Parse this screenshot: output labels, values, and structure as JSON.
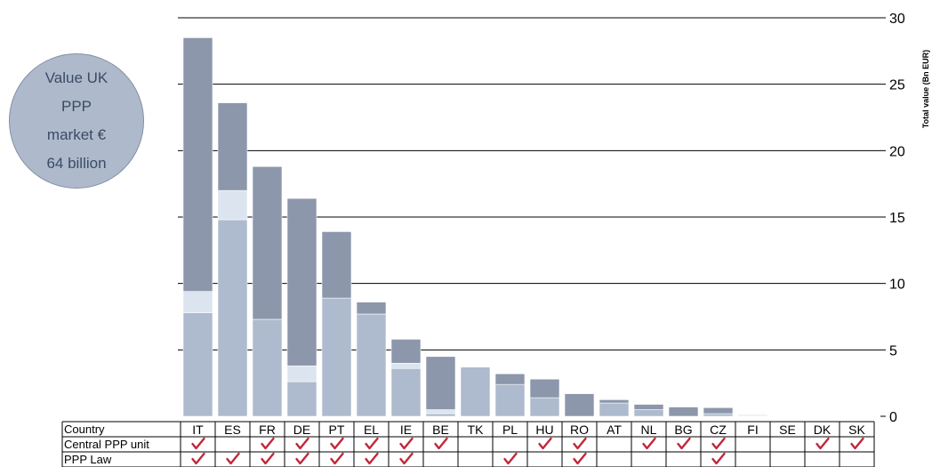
{
  "bubble": {
    "line1": "Value UK",
    "line2": "PPP",
    "line3": "market €",
    "line4": "64 billion"
  },
  "colors": {
    "dark": "#8c97ab",
    "light": "#aebacd",
    "pale": "#dce4ef",
    "gridline": "#000000",
    "check": "#c0283a"
  },
  "chart_data": {
    "type": "bar",
    "stacked": true,
    "ylabel": "Total value (Bn EUR)",
    "ylim": [
      0,
      30
    ],
    "yticks": [
      0,
      5,
      10,
      15,
      20,
      25,
      30
    ],
    "grid": true,
    "categories": [
      "IT",
      "ES",
      "FR",
      "DE",
      "PT",
      "EL",
      "IE",
      "BE",
      "TK",
      "PL",
      "HU",
      "RO",
      "AT",
      "NL",
      "BG",
      "CZ",
      "FI",
      "SE",
      "DK",
      "SK"
    ],
    "segments": {
      "light": [
        7.8,
        14.8,
        7.3,
        2.6,
        8.9,
        7.7,
        3.6,
        0.2,
        3.7,
        2.4,
        1.4,
        0.0,
        1.0,
        0.5,
        0.0,
        0.2,
        0.05,
        0.0,
        0.0,
        0.0
      ],
      "pale": [
        1.6,
        2.2,
        0.0,
        1.2,
        0.0,
        0.0,
        0.4,
        0.3,
        0.0,
        0.0,
        0.0,
        0.0,
        0.0,
        0.0,
        0.0,
        0.0,
        0.0,
        0.0,
        0.0,
        0.0
      ],
      "dark": [
        19.1,
        6.6,
        11.5,
        12.6,
        5.0,
        0.9,
        1.8,
        4.0,
        0.0,
        0.8,
        1.4,
        1.7,
        0.25,
        0.4,
        0.7,
        0.45,
        0.05,
        0.0,
        0.0,
        0.0
      ]
    },
    "table": {
      "row_labels": [
        "Country",
        "Central PPP unit",
        "PPP Law"
      ],
      "central_ppp_unit": [
        1,
        0,
        1,
        1,
        1,
        1,
        1,
        1,
        0,
        0,
        1,
        1,
        0,
        1,
        1,
        1,
        0,
        0,
        1,
        1
      ],
      "ppp_law": [
        1,
        1,
        1,
        1,
        1,
        1,
        1,
        0,
        0,
        1,
        0,
        1,
        0,
        0,
        0,
        1,
        0,
        0,
        0,
        0
      ]
    }
  }
}
